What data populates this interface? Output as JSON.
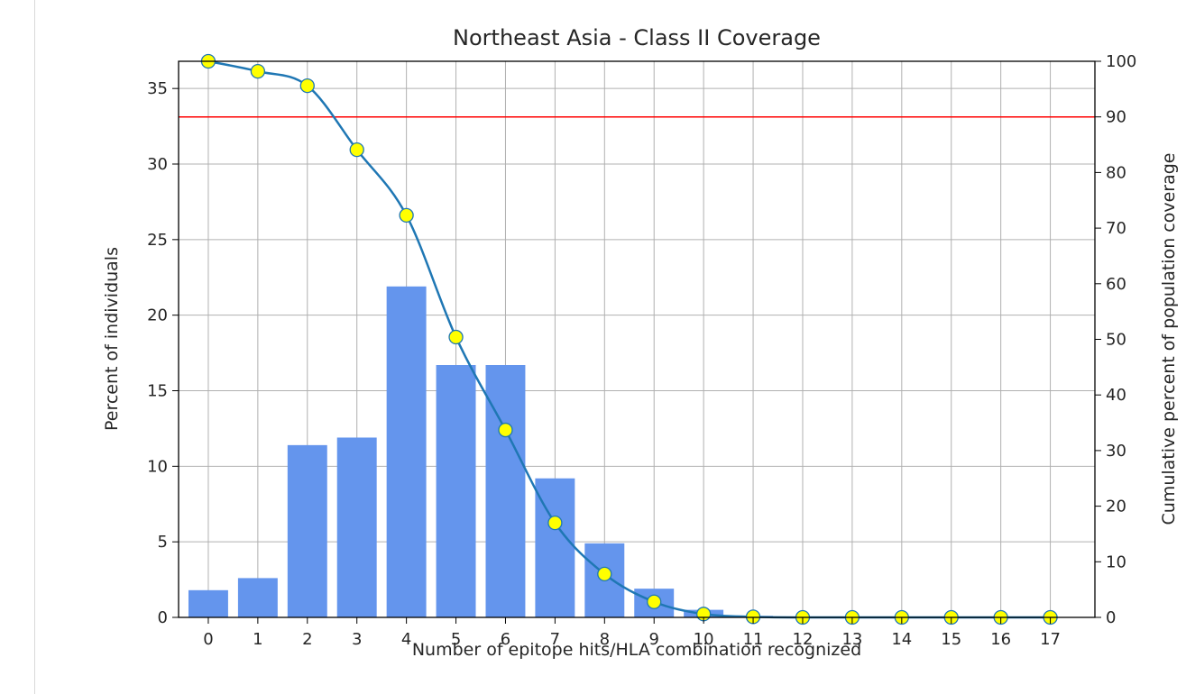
{
  "chart_data": {
    "type": "bar",
    "title": "Northeast Asia - Class II Coverage",
    "xlabel": "Number of epitope hits/HLA combination recognized",
    "ylabel": "Percent of individuals",
    "y2label": "Cumulative percent of population coverage",
    "categories": [
      "0",
      "1",
      "2",
      "3",
      "4",
      "5",
      "6",
      "7",
      "8",
      "9",
      "10",
      "11",
      "12",
      "13",
      "14",
      "15",
      "16",
      "17"
    ],
    "x_ticks": [
      "0",
      "1",
      "2",
      "3",
      "4",
      "5",
      "6",
      "7",
      "8",
      "9",
      "10",
      "11",
      "12",
      "13",
      "14",
      "15",
      "16",
      "17"
    ],
    "y_ticks": [
      "0",
      "5",
      "10",
      "15",
      "20",
      "25",
      "30",
      "35"
    ],
    "y2_ticks": [
      "0",
      "10",
      "20",
      "30",
      "40",
      "50",
      "60",
      "70",
      "80",
      "90",
      "100"
    ],
    "ylim": [
      0,
      36.8
    ],
    "y2lim": [
      0,
      100
    ],
    "xlim": [
      -0.6,
      17.9
    ],
    "grid": true,
    "series": [
      {
        "kind": "bar",
        "axis": "left",
        "color": "#6495ed",
        "values": [
          1.8,
          2.6,
          11.4,
          11.9,
          21.9,
          16.7,
          16.7,
          9.2,
          4.9,
          1.9,
          0.5,
          0.1,
          0,
          0,
          0,
          0,
          0,
          0
        ]
      },
      {
        "kind": "line",
        "axis": "right",
        "color": "#1f77b4",
        "marker_face": "#ffff00",
        "values": [
          100,
          98.2,
          95.6,
          84.1,
          72.3,
          50.4,
          33.7,
          17.0,
          7.8,
          2.8,
          0.6,
          0.1,
          0,
          0,
          0,
          0,
          0,
          0
        ]
      }
    ],
    "reference_line": {
      "axis": "right",
      "value": 90,
      "color": "#ff0000"
    }
  }
}
